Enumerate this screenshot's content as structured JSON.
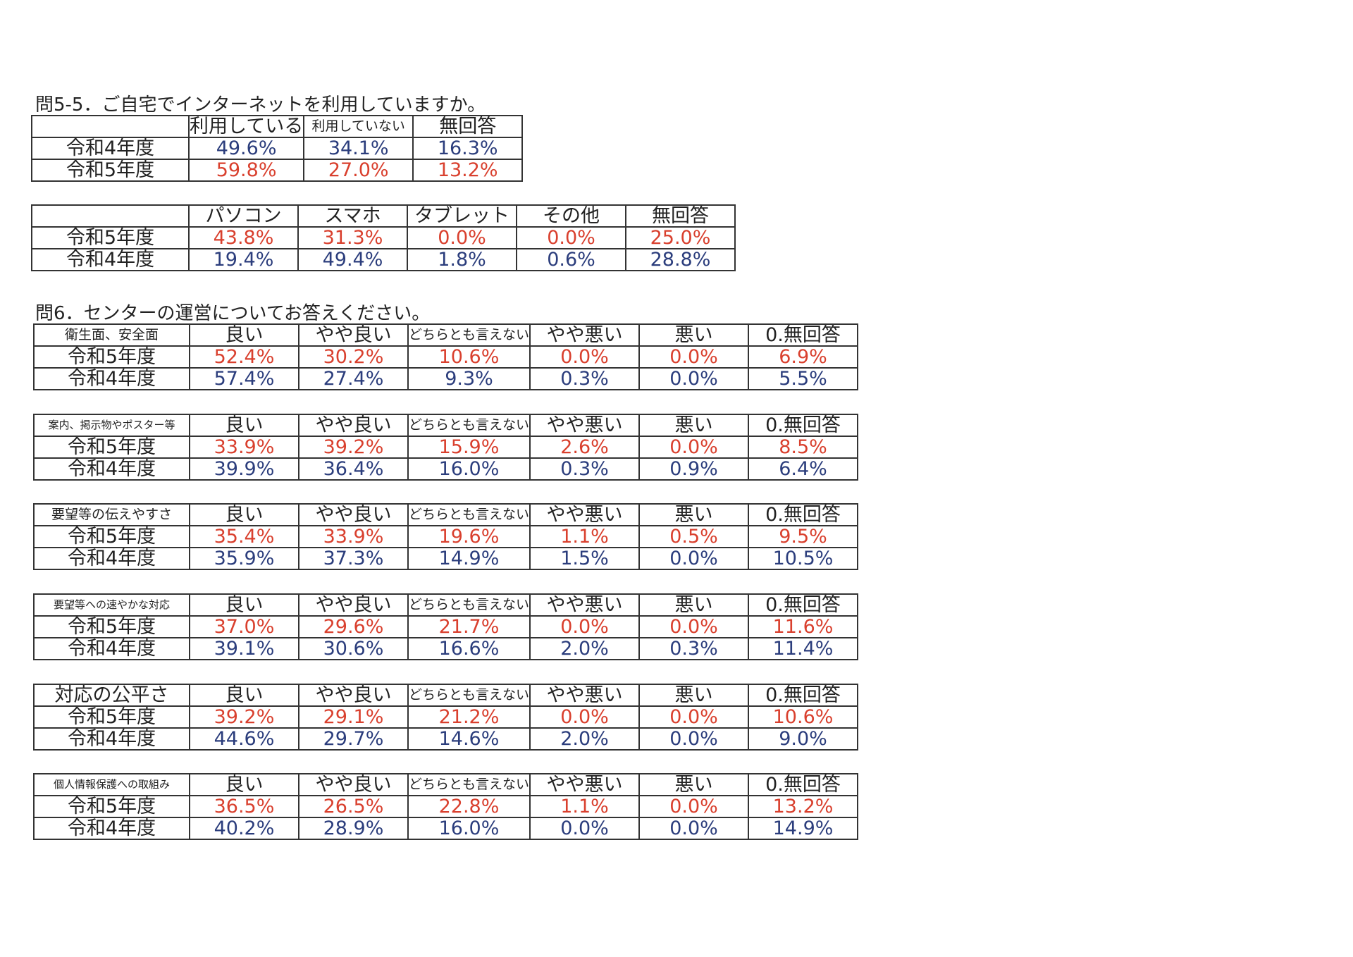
{
  "q5_5": {
    "title": "問5-5．ご自宅でインターネットを利用していますか。",
    "tables": [
      {
        "header": [
          "利用している",
          "利用していない",
          "無回答"
        ],
        "rows": [
          {
            "label": "令和4年度",
            "color": "#2b3d7c",
            "values": [
              "49.6%",
              "34.1%",
              "16.3%"
            ]
          },
          {
            "label": "令和5年度",
            "color": "#d9402e",
            "values": [
              "59.8%",
              "27.0%",
              "13.2%"
            ]
          }
        ]
      },
      {
        "header": [
          "パソコン",
          "スマホ",
          "タブレット",
          "その他",
          "無回答"
        ],
        "rows": [
          {
            "label": "令和5年度",
            "color": "#d9402e",
            "values": [
              "43.8%",
              "31.3%",
              "0.0%",
              "0.0%",
              "25.0%"
            ]
          },
          {
            "label": "令和4年度",
            "color": "#2b3d7c",
            "values": [
              "19.4%",
              "49.4%",
              "1.8%",
              "0.6%",
              "28.8%"
            ]
          }
        ]
      }
    ]
  },
  "q6": {
    "title": "問6．センターの運営についてお答えください。",
    "tables": [
      {
        "corner": "衛生面、安全面",
        "header": [
          "良い",
          "やや良い",
          "どちらとも言えない",
          "やや悪い",
          "悪い",
          "0.無回答"
        ],
        "rows": [
          {
            "label": "令和5年度",
            "color": "#d9402e",
            "values": [
              "52.4%",
              "30.2%",
              "10.6%",
              "0.0%",
              "0.0%",
              "6.9%"
            ]
          },
          {
            "label": "令和4年度",
            "color": "#2b3d7c",
            "values": [
              "57.4%",
              "27.4%",
              "9.3%",
              "0.3%",
              "0.0%",
              "5.5%"
            ]
          }
        ]
      },
      {
        "corner": "案内、掲示物やポスター等",
        "header": [
          "良い",
          "やや良い",
          "どちらとも言えない",
          "やや悪い",
          "悪い",
          "0.無回答"
        ],
        "rows": [
          {
            "label": "令和5年度",
            "color": "#d9402e",
            "values": [
              "33.9%",
              "39.2%",
              "15.9%",
              "2.6%",
              "0.0%",
              "8.5%"
            ]
          },
          {
            "label": "令和4年度",
            "color": "#2b3d7c",
            "values": [
              "39.9%",
              "36.4%",
              "16.0%",
              "0.3%",
              "0.9%",
              "6.4%"
            ]
          }
        ]
      },
      {
        "corner": "要望等の伝えやすさ",
        "header": [
          "良い",
          "やや良い",
          "どちらとも言えない",
          "やや悪い",
          "悪い",
          "0.無回答"
        ],
        "rows": [
          {
            "label": "令和5年度",
            "color": "#d9402e",
            "values": [
              "35.4%",
              "33.9%",
              "19.6%",
              "1.1%",
              "0.5%",
              "9.5%"
            ]
          },
          {
            "label": "令和4年度",
            "color": "#2b3d7c",
            "values": [
              "35.9%",
              "37.3%",
              "14.9%",
              "1.5%",
              "0.0%",
              "10.5%"
            ]
          }
        ]
      },
      {
        "corner": "要望等への速やかな対応",
        "header": [
          "良い",
          "やや良い",
          "どちらとも言えない",
          "やや悪い",
          "悪い",
          "0.無回答"
        ],
        "rows": [
          {
            "label": "令和5年度",
            "color": "#d9402e",
            "values": [
              "37.0%",
              "29.6%",
              "21.7%",
              "0.0%",
              "0.0%",
              "11.6%"
            ]
          },
          {
            "label": "令和4年度",
            "color": "#2b3d7c",
            "values": [
              "39.1%",
              "30.6%",
              "16.6%",
              "2.0%",
              "0.3%",
              "11.4%"
            ]
          }
        ]
      },
      {
        "corner": "対応の公平さ",
        "header": [
          "良い",
          "やや良い",
          "どちらとも言えない",
          "やや悪い",
          "悪い",
          "0.無回答"
        ],
        "rows": [
          {
            "label": "令和5年度",
            "color": "#d9402e",
            "values": [
              "39.2%",
              "29.1%",
              "21.2%",
              "0.0%",
              "0.0%",
              "10.6%"
            ]
          },
          {
            "label": "令和4年度",
            "color": "#2b3d7c",
            "values": [
              "44.6%",
              "29.7%",
              "14.6%",
              "2.0%",
              "0.0%",
              "9.0%"
            ]
          }
        ]
      },
      {
        "corner": "個人情報保護への取組み",
        "header": [
          "良い",
          "やや良い",
          "どちらとも言えない",
          "やや悪い",
          "悪い",
          "0.無回答"
        ],
        "rows": [
          {
            "label": "令和5年度",
            "color": "#d9402e",
            "values": [
              "36.5%",
              "26.5%",
              "22.8%",
              "1.1%",
              "0.0%",
              "13.2%"
            ]
          },
          {
            "label": "令和4年度",
            "color": "#2b3d7c",
            "values": [
              "40.2%",
              "28.9%",
              "16.0%",
              "0.0%",
              "0.0%",
              "14.9%"
            ]
          }
        ]
      }
    ]
  }
}
